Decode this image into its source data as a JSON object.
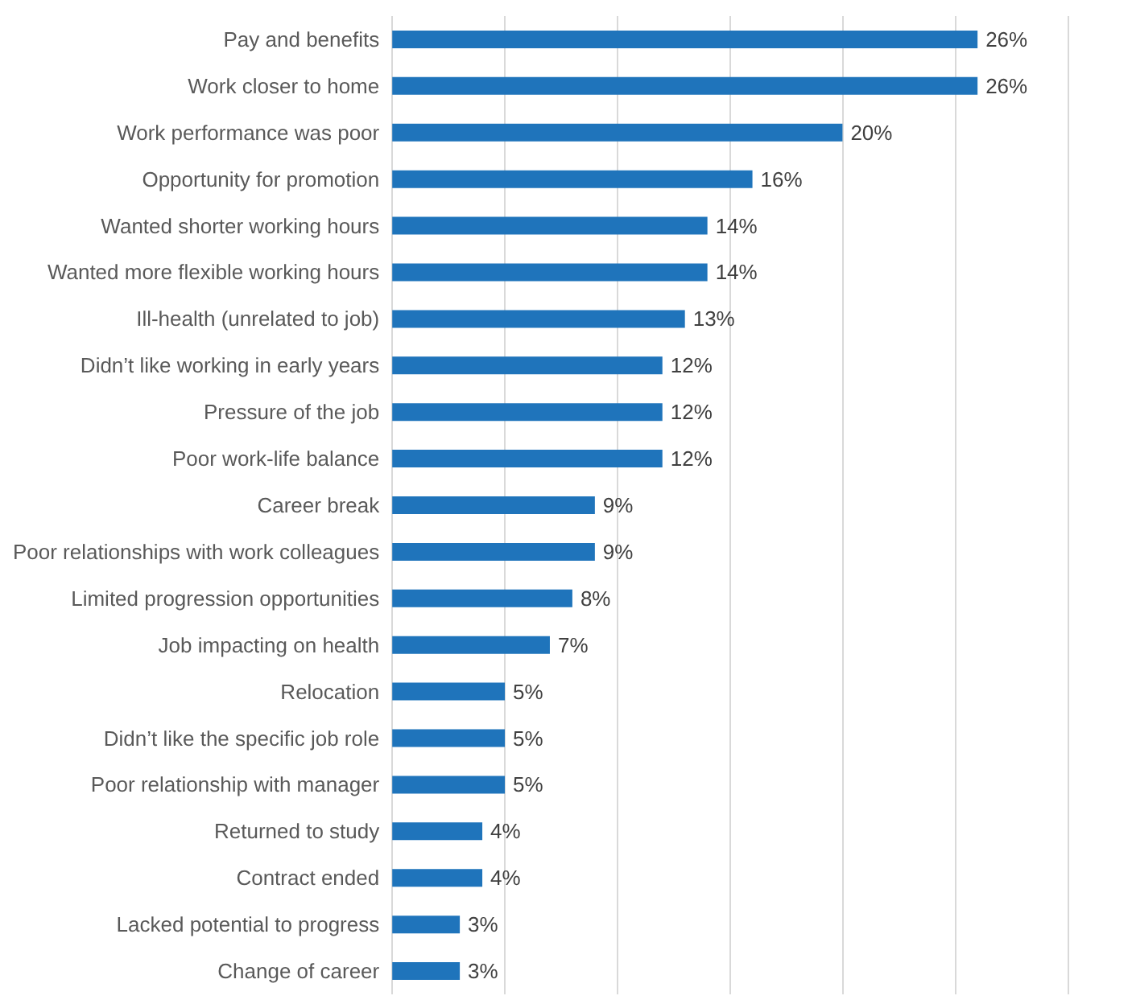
{
  "chart_data": {
    "type": "bar",
    "orientation": "horizontal",
    "categories": [
      "Pay and benefits",
      "Work closer to home",
      "Work performance was poor",
      "Opportunity for promotion",
      "Wanted shorter working hours",
      "Wanted more flexible working hours",
      "Ill-health (unrelated to job)",
      "Didn’t like working in early years",
      "Pressure of the job",
      "Poor work-life balance",
      "Career break",
      "Poor relationships with work colleagues",
      "Limited progression opportunities",
      "Job impacting on health",
      "Relocation",
      "Didn’t like the specific job role",
      "Poor relationship with manager",
      "Returned to study",
      "Contract ended",
      "Lacked potential to progress",
      "Change of career"
    ],
    "values": [
      26,
      26,
      20,
      16,
      14,
      14,
      13,
      12,
      12,
      12,
      9,
      9,
      8,
      7,
      5,
      5,
      5,
      4,
      4,
      3,
      3
    ],
    "value_labels": [
      "26%",
      "26%",
      "20%",
      "16%",
      "14%",
      "14%",
      "13%",
      "12%",
      "12%",
      "12%",
      "9%",
      "9%",
      "8%",
      "7%",
      "5%",
      "5%",
      "5%",
      "4%",
      "4%",
      "3%",
      "3%"
    ],
    "color": "#1f74bb",
    "xlim": [
      0,
      30
    ],
    "xticks": [
      {
        "value": 0,
        "label": null
      },
      {
        "value": 5,
        "label": null
      },
      {
        "value": 10,
        "label": null
      },
      {
        "value": 15,
        "label": null
      },
      {
        "value": 20,
        "label": null
      },
      {
        "value": 25,
        "label": null
      },
      {
        "value": 30,
        "label": null
      }
    ],
    "tick_labels": "y",
    "grid": "x"
  }
}
